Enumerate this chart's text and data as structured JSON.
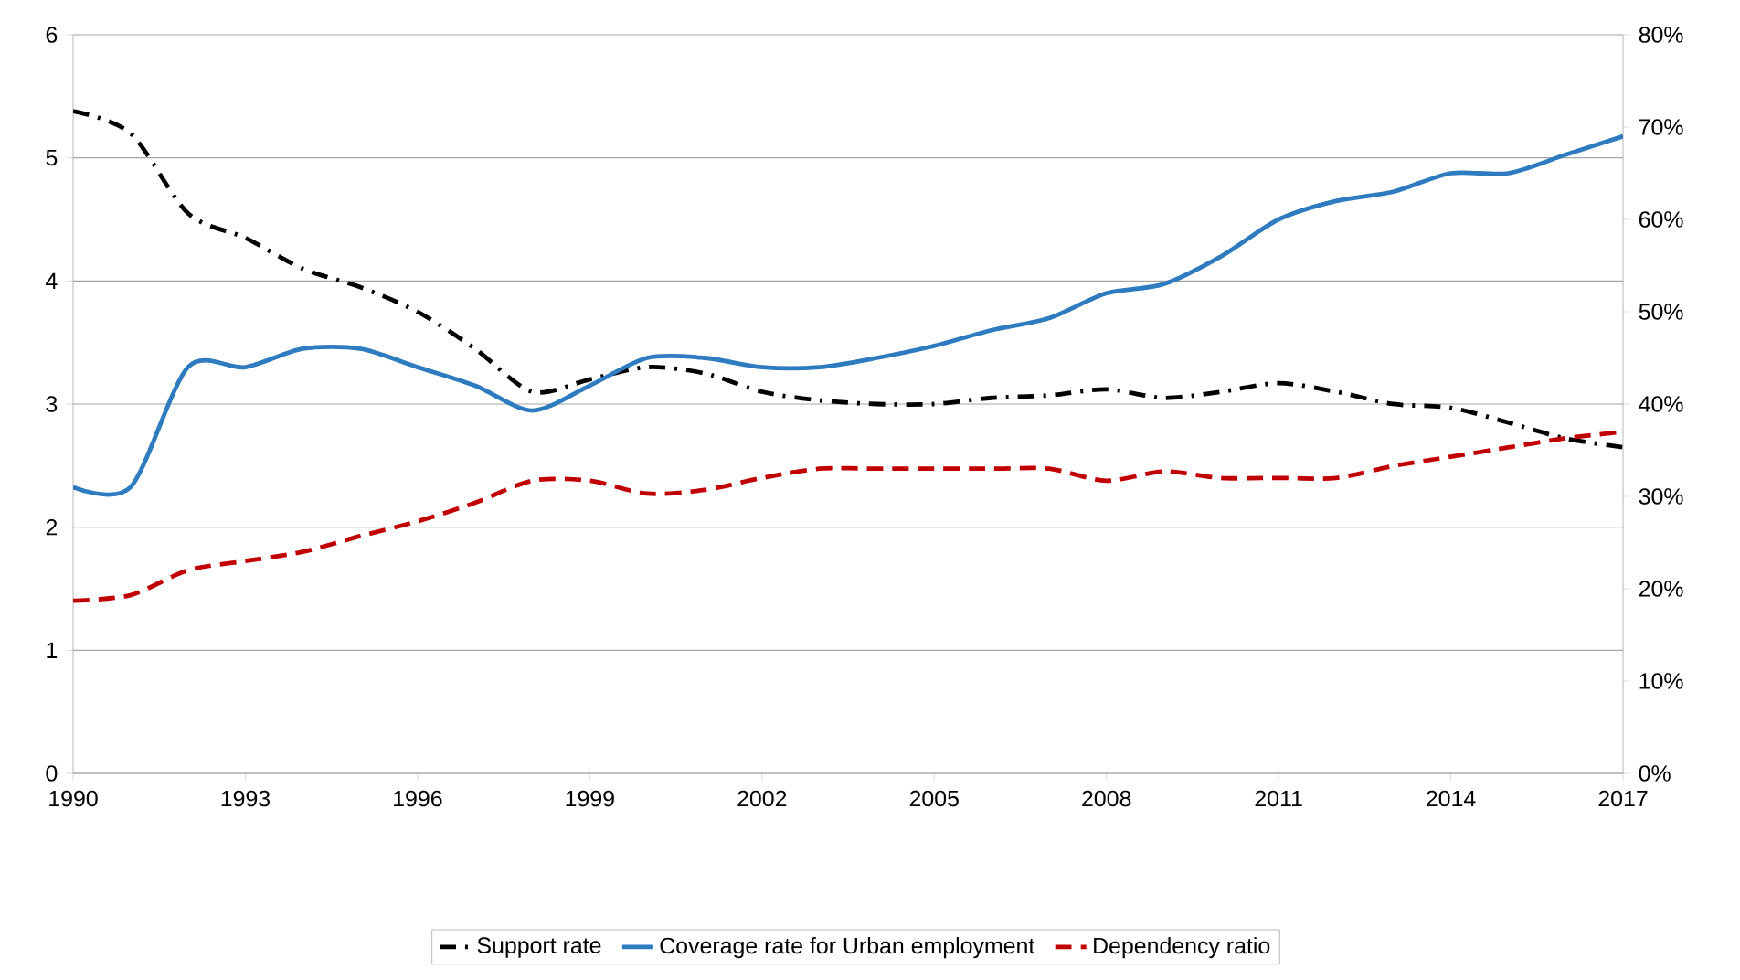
{
  "chart_data": {
    "type": "line",
    "x": [
      1990,
      1991,
      1992,
      1993,
      1994,
      1995,
      1996,
      1997,
      1998,
      1999,
      2000,
      2001,
      2002,
      2003,
      2004,
      2005,
      2006,
      2007,
      2008,
      2009,
      2010,
      2011,
      2012,
      2013,
      2014,
      2015,
      2016,
      2017
    ],
    "series": [
      {
        "name": "Support rate",
        "color": "#000000",
        "line_style": "dashdot",
        "axis": "y",
        "values": [
          5.38,
          5.2,
          4.55,
          4.35,
          4.1,
          3.95,
          3.75,
          3.45,
          3.1,
          3.2,
          3.3,
          3.25,
          3.1,
          3.03,
          3.0,
          3.0,
          3.05,
          3.07,
          3.12,
          3.05,
          3.1,
          3.17,
          3.1,
          3.0,
          2.97,
          2.85,
          2.72,
          2.65
        ]
      },
      {
        "name": "Coverage rate for Urban employment",
        "color": "#2e7bbf",
        "line_style": "solid",
        "axis": "y2",
        "values": [
          31,
          31,
          44,
          44,
          46,
          46,
          44,
          42,
          39.3,
          42,
          45,
          45,
          44,
          44,
          45,
          46.3,
          48,
          49.3,
          52,
          53,
          56,
          60,
          62,
          63,
          65,
          65,
          67,
          69
        ]
      },
      {
        "name": "Dependency ratio",
        "color": "#c00000",
        "line_style": "dashed",
        "axis": "y2",
        "values": [
          18.7,
          19.3,
          22,
          23,
          24,
          25.7,
          27.3,
          29.3,
          31.7,
          31.7,
          30.3,
          30.7,
          32,
          33,
          33,
          33,
          33,
          33,
          31.7,
          32.7,
          32,
          32,
          32,
          33.3,
          34.3,
          35.3,
          36.3,
          37
        ]
      }
    ],
    "xlim": [
      1990,
      2017
    ],
    "xticks": [
      1990,
      1993,
      1996,
      1999,
      2002,
      2005,
      2008,
      2011,
      2014,
      2017
    ],
    "ylim": [
      0,
      6
    ],
    "yticks": [
      0,
      1,
      2,
      3,
      4,
      5,
      6
    ],
    "y2lim": [
      0,
      80
    ],
    "y2ticks": [
      {
        "value": 0,
        "label": "0%"
      },
      {
        "value": 10,
        "label": "10%"
      },
      {
        "value": 20,
        "label": "20%"
      },
      {
        "value": 30,
        "label": "30%"
      },
      {
        "value": 40,
        "label": "40%"
      },
      {
        "value": 50,
        "label": "50%"
      },
      {
        "value": 60,
        "label": "60%"
      },
      {
        "value": 70,
        "label": "70%"
      },
      {
        "value": 80,
        "label": "80%"
      }
    ],
    "grid": "y",
    "legend": "bottom",
    "marker": "none"
  }
}
